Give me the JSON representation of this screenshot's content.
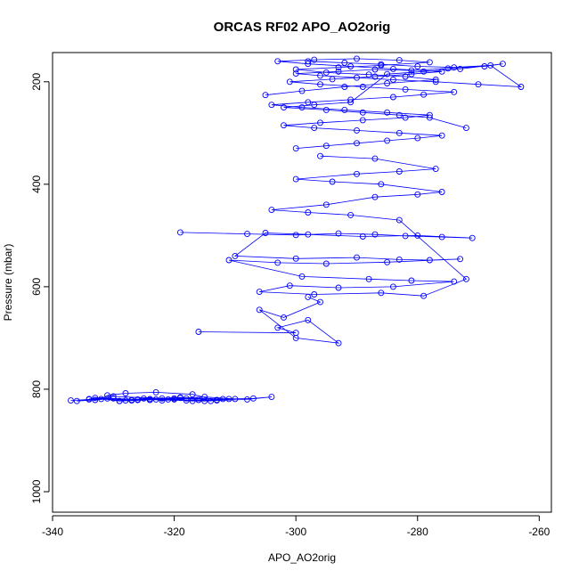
{
  "chart_data": {
    "type": "scatter",
    "title": "ORCAS RF02 APO_AO2orig",
    "xlabel": "APO_AO2orig",
    "ylabel": "Pressure (mbar)",
    "xlim": [
      -340,
      -258
    ],
    "ylim": [
      1040,
      143
    ],
    "y_reversed": true,
    "x_ticks": [
      -340,
      -320,
      -300,
      -280,
      -260
    ],
    "y_ticks": [
      200,
      400,
      600,
      800,
      1000
    ],
    "marker": "open-circle",
    "line_connected": true,
    "grid": false,
    "legend": "none",
    "color": "#0000ff",
    "series": [
      {
        "values_x": [
          -337,
          -334,
          -331,
          -329,
          -326,
          -324,
          -322,
          -320,
          -318,
          -316,
          -314,
          -312,
          -319,
          -323,
          -327,
          -330,
          -333,
          -336,
          -332,
          -328,
          -325,
          -321,
          -317,
          -313,
          -310,
          -315,
          -320,
          -324,
          -329,
          -333,
          -326,
          -318,
          -311,
          -307,
          -304,
          -308,
          -315,
          -322,
          -330,
          -334,
          -327,
          -319,
          -313,
          -317,
          -323,
          -328,
          -331
        ],
        "values_y": [
          822,
          820,
          818,
          823,
          821,
          819,
          822,
          820,
          818,
          821,
          823,
          819,
          817,
          820,
          822,
          818,
          821,
          823,
          819,
          822,
          818,
          820,
          823,
          821,
          819,
          815,
          818,
          821,
          823,
          817,
          820,
          822,
          819,
          818,
          815,
          820,
          823,
          818,
          814,
          819,
          821,
          816,
          822,
          810,
          806,
          808,
          812
        ]
      },
      {
        "values_x": [
          -316,
          -300,
          -303,
          -298,
          -293,
          -300,
          -306,
          -302,
          -296,
          -298
        ],
        "values_y": [
          688,
          690,
          680,
          665,
          710,
          700,
          645,
          660,
          630,
          620
        ]
      },
      {
        "values_x": [
          -319,
          -308,
          -300,
          -293,
          -287,
          -282,
          -276,
          -271,
          -280,
          -289,
          -298,
          -305,
          -310,
          -300,
          -290,
          -283,
          -278,
          -273,
          -285,
          -295,
          -303,
          -311,
          -299,
          -288,
          -281,
          -274,
          -284,
          -293,
          -301,
          -306,
          -297,
          -286,
          -279,
          -272,
          -283,
          -291,
          -298,
          -304,
          -295,
          -287,
          -280,
          -276,
          -286,
          -294,
          -300,
          -290,
          -283,
          -277,
          -287,
          -296
        ],
        "values_y": [
          494,
          497,
          499,
          496,
          498,
          501,
          503,
          505,
          500,
          502,
          498,
          495,
          540,
          545,
          543,
          547,
          548,
          546,
          552,
          555,
          553,
          548,
          580,
          585,
          588,
          590,
          600,
          602,
          598,
          610,
          615,
          612,
          618,
          585,
          470,
          460,
          455,
          450,
          440,
          425,
          420,
          415,
          400,
          395,
          390,
          380,
          375,
          370,
          350,
          345
        ]
      },
      {
        "values_x": [
          -300,
          -295,
          -290,
          -285,
          -280,
          -276,
          -283,
          -290,
          -297,
          -302,
          -296,
          -289,
          -282,
          -278,
          -285,
          -292,
          -299,
          -304,
          -298,
          -291,
          -284,
          -279,
          -274,
          -282,
          -289,
          -296,
          -301,
          -294,
          -287,
          -281,
          -276,
          -284,
          -291,
          -298,
          -303,
          -297,
          -290,
          -283,
          -278,
          -286,
          -293,
          -300,
          -295,
          -288,
          -282,
          -277,
          -285,
          -292,
          -299,
          -305
        ],
        "values_y": [
          330,
          325,
          320,
          315,
          310,
          305,
          300,
          295,
          290,
          285,
          280,
          275,
          270,
          265,
          260,
          255,
          250,
          245,
          240,
          235,
          230,
          225,
          220,
          215,
          210,
          205,
          200,
          195,
          190,
          185,
          180,
          175,
          170,
          165,
          160,
          157,
          155,
          158,
          162,
          168,
          172,
          176,
          182,
          186,
          190,
          196,
          203,
          210,
          218,
          226
        ]
      },
      {
        "values_x": [
          -298,
          -292,
          -286,
          -280,
          -274,
          -268,
          -263,
          -270,
          -277,
          -284,
          -290,
          -296,
          -300,
          -293,
          -287,
          -281,
          -275,
          -269,
          -266,
          -273,
          -279,
          -285,
          -291,
          -297,
          -302,
          -295,
          -289,
          -283,
          -278,
          -272
        ],
        "values_y": [
          160,
          163,
          166,
          170,
          172,
          168,
          210,
          205,
          200,
          196,
          192,
          188,
          184,
          180,
          176,
          178,
          174,
          170,
          165,
          175,
          180,
          185,
          240,
          245,
          250,
          255,
          260,
          265,
          270,
          290
        ]
      }
    ]
  }
}
